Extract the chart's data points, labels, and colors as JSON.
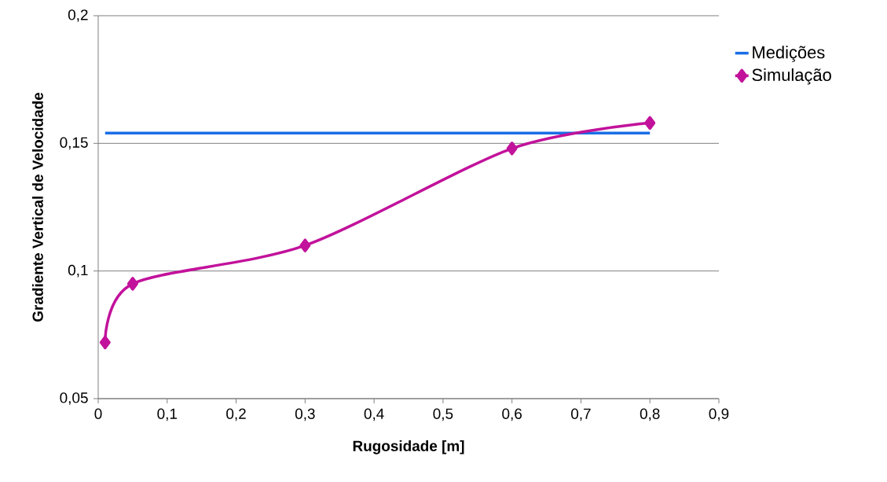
{
  "chart_data": {
    "type": "line",
    "xlabel": "Rugosidade [m]",
    "ylabel": "Gradiente Vertical de Velocidade",
    "series": [
      {
        "name": "Medições",
        "color": "#1a6ee6",
        "x": [
          0.01,
          0.8
        ],
        "values": [
          0.154,
          0.154
        ],
        "marker": "none",
        "line_style": "solid"
      },
      {
        "name": "Simulação",
        "color": "#c2129b",
        "x": [
          0.01,
          0.05,
          0.3,
          0.6,
          0.8
        ],
        "values": [
          0.072,
          0.095,
          0.11,
          0.148,
          0.158
        ],
        "marker": "diamond",
        "line_style": "solid"
      }
    ],
    "xlim": [
      0,
      0.9
    ],
    "ylim": [
      0.05,
      0.2
    ],
    "xticks": [
      0,
      {
        "value": 0.1,
        "label": "0,1"
      },
      {
        "value": 0.2,
        "label": "0,2"
      },
      {
        "value": 0.3,
        "label": "0,3"
      },
      {
        "value": 0.4,
        "label": "0,4"
      },
      {
        "value": 0.5,
        "label": "0,5"
      },
      {
        "value": 0.6,
        "label": "0,6"
      },
      {
        "value": 0.7,
        "label": "0,7"
      },
      {
        "value": 0.8,
        "label": "0,8"
      },
      {
        "value": 0.9,
        "label": "0,9"
      }
    ],
    "yticks": [
      {
        "value": 0.05,
        "label": "0,05"
      },
      {
        "value": 0.1,
        "label": "0,1"
      },
      {
        "value": 0.15,
        "label": "0,15"
      },
      {
        "value": 0.2,
        "label": "0,2"
      }
    ],
    "grid": "y",
    "legend": "right"
  }
}
